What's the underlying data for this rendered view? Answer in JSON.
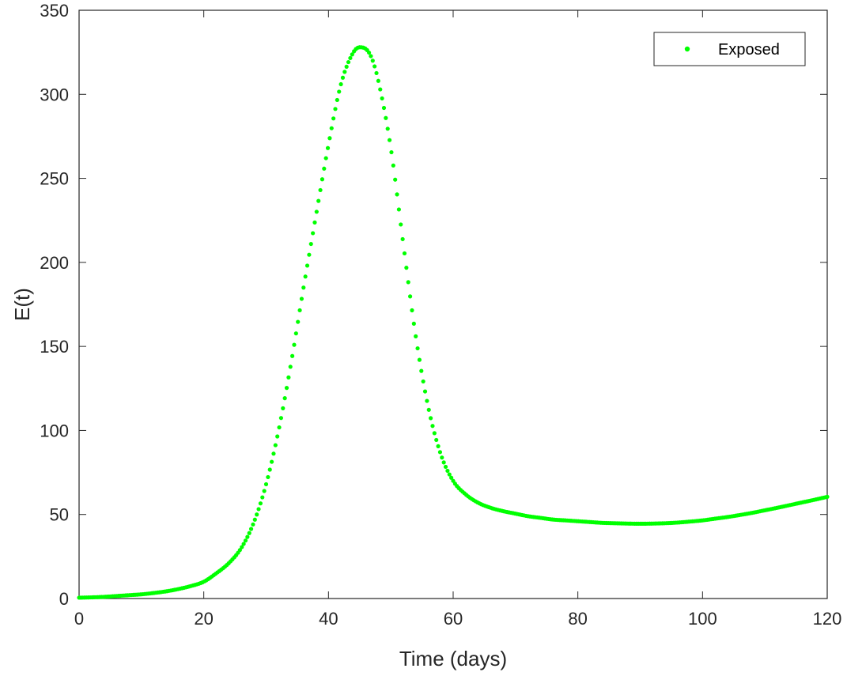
{
  "chart_data": {
    "type": "scatter",
    "xlabel": "Time (days)",
    "ylabel": "E(t)",
    "xlim": [
      0,
      120
    ],
    "ylim": [
      0,
      350
    ],
    "xticks": [
      0,
      20,
      40,
      60,
      80,
      100,
      120
    ],
    "yticks": [
      0,
      50,
      100,
      150,
      200,
      250,
      300,
      350
    ],
    "grid": false,
    "legend_position": "top-right",
    "series": [
      {
        "name": "Exposed",
        "color": "#00ff00",
        "marker": "dot",
        "x": [
          0,
          2,
          4,
          6,
          8,
          10,
          12,
          14,
          16,
          18,
          20,
          22,
          24,
          26,
          28,
          30,
          32,
          34,
          36,
          38,
          40,
          42,
          44,
          45,
          46,
          47,
          48,
          50,
          52,
          54,
          56,
          58,
          60,
          62,
          64,
          66,
          68,
          70,
          72,
          74,
          76,
          78,
          80,
          82,
          84,
          86,
          88,
          90,
          92,
          94,
          96,
          98,
          100,
          102,
          104,
          106,
          108,
          110,
          112,
          114,
          116,
          118,
          120
        ],
        "y": [
          0.5,
          0.7,
          1.0,
          1.5,
          2.0,
          2.5,
          3.3,
          4.3,
          5.7,
          7.5,
          10,
          15,
          21,
          30,
          45,
          68,
          100,
          140,
          185,
          228,
          270,
          306,
          325,
          328,
          327,
          321,
          308,
          268,
          211,
          156,
          114,
          86,
          70,
          62,
          57,
          54,
          52,
          50.5,
          49,
          48,
          47,
          46.5,
          46,
          45.5,
          45,
          44.8,
          44.6,
          44.5,
          44.6,
          44.8,
          45.2,
          45.8,
          46.5,
          47.5,
          48.5,
          49.7,
          51,
          52.5,
          54,
          55.6,
          57.2,
          58.8,
          60.5
        ]
      }
    ]
  }
}
